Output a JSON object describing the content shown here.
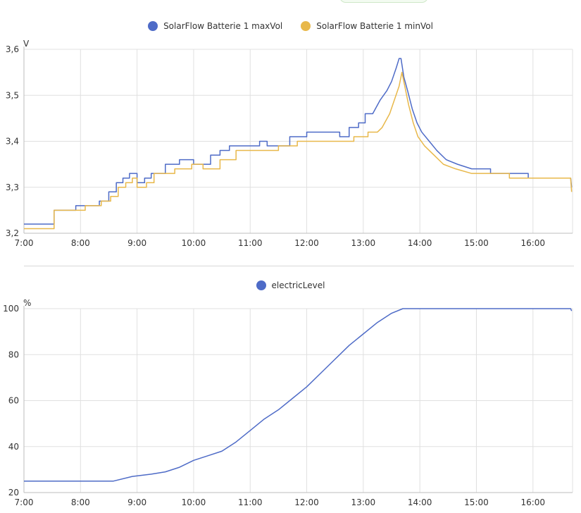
{
  "chart_data": [
    {
      "type": "line",
      "title": "",
      "unit_label": "V",
      "xlabel": "",
      "ylabel": "",
      "ylim": [
        3.2,
        3.6
      ],
      "xlim": [
        "7:00",
        "16:42"
      ],
      "y_ticks": [
        "3,2",
        "3,3",
        "3,4",
        "3,5",
        "3,6"
      ],
      "x_ticks": [
        "7:00",
        "8:00",
        "9:00",
        "10:00",
        "11:00",
        "12:00",
        "13:00",
        "14:00",
        "15:00",
        "16:00"
      ],
      "grid": true,
      "legend_position": "top-center",
      "series": [
        {
          "name": "SolarFlow Batterie 1 maxVol",
          "color": "#4e6bc7",
          "points": [
            [
              "7:00",
              3.22
            ],
            [
              "7:32",
              3.22
            ],
            [
              "7:32",
              3.25
            ],
            [
              "7:55",
              3.25
            ],
            [
              "7:55",
              3.26
            ],
            [
              "8:20",
              3.26
            ],
            [
              "8:20",
              3.27
            ],
            [
              "8:30",
              3.27
            ],
            [
              "8:30",
              3.29
            ],
            [
              "8:38",
              3.29
            ],
            [
              "8:38",
              3.31
            ],
            [
              "8:45",
              3.31
            ],
            [
              "8:45",
              3.32
            ],
            [
              "8:52",
              3.32
            ],
            [
              "8:52",
              3.33
            ],
            [
              "9:00",
              3.33
            ],
            [
              "9:00",
              3.31
            ],
            [
              "9:08",
              3.31
            ],
            [
              "9:08",
              3.32
            ],
            [
              "9:15",
              3.32
            ],
            [
              "9:15",
              3.33
            ],
            [
              "9:30",
              3.33
            ],
            [
              "9:30",
              3.35
            ],
            [
              "9:45",
              3.35
            ],
            [
              "9:45",
              3.36
            ],
            [
              "10:00",
              3.36
            ],
            [
              "10:00",
              3.35
            ],
            [
              "10:18",
              3.35
            ],
            [
              "10:18",
              3.37
            ],
            [
              "10:28",
              3.37
            ],
            [
              "10:28",
              3.38
            ],
            [
              "10:38",
              3.38
            ],
            [
              "10:38",
              3.39
            ],
            [
              "11:10",
              3.39
            ],
            [
              "11:10",
              3.4
            ],
            [
              "11:18",
              3.4
            ],
            [
              "11:18",
              3.39
            ],
            [
              "11:42",
              3.39
            ],
            [
              "11:42",
              3.41
            ],
            [
              "12:00",
              3.41
            ],
            [
              "12:00",
              3.42
            ],
            [
              "12:35",
              3.42
            ],
            [
              "12:35",
              3.41
            ],
            [
              "12:45",
              3.41
            ],
            [
              "12:45",
              3.43
            ],
            [
              "12:55",
              3.43
            ],
            [
              "12:55",
              3.44
            ],
            [
              "13:02",
              3.44
            ],
            [
              "13:02",
              3.46
            ],
            [
              "13:10",
              3.46
            ],
            [
              "13:18",
              3.49
            ],
            [
              "13:25",
              3.51
            ],
            [
              "13:30",
              3.53
            ],
            [
              "13:35",
              3.56
            ],
            [
              "13:38",
              3.58
            ],
            [
              "13:40",
              3.58
            ],
            [
              "13:43",
              3.54
            ],
            [
              "13:47",
              3.51
            ],
            [
              "13:52",
              3.47
            ],
            [
              "13:57",
              3.44
            ],
            [
              "14:02",
              3.42
            ],
            [
              "14:10",
              3.4
            ],
            [
              "14:18",
              3.38
            ],
            [
              "14:28",
              3.36
            ],
            [
              "14:40",
              3.35
            ],
            [
              "14:55",
              3.34
            ],
            [
              "15:15",
              3.34
            ],
            [
              "15:15",
              3.33
            ],
            [
              "15:55",
              3.33
            ],
            [
              "15:55",
              3.32
            ],
            [
              "16:40",
              3.32
            ],
            [
              "16:41",
              3.3
            ]
          ]
        },
        {
          "name": "SolarFlow Batterie 1 minVol",
          "color": "#e8b84a",
          "points": [
            [
              "7:00",
              3.21
            ],
            [
              "7:32",
              3.21
            ],
            [
              "7:32",
              3.25
            ],
            [
              "8:05",
              3.25
            ],
            [
              "8:05",
              3.26
            ],
            [
              "8:22",
              3.26
            ],
            [
              "8:22",
              3.27
            ],
            [
              "8:32",
              3.27
            ],
            [
              "8:32",
              3.28
            ],
            [
              "8:40",
              3.28
            ],
            [
              "8:40",
              3.3
            ],
            [
              "8:48",
              3.3
            ],
            [
              "8:48",
              3.31
            ],
            [
              "8:55",
              3.31
            ],
            [
              "8:55",
              3.32
            ],
            [
              "9:00",
              3.32
            ],
            [
              "9:00",
              3.3
            ],
            [
              "9:10",
              3.3
            ],
            [
              "9:10",
              3.31
            ],
            [
              "9:18",
              3.31
            ],
            [
              "9:18",
              3.33
            ],
            [
              "9:40",
              3.33
            ],
            [
              "9:40",
              3.34
            ],
            [
              "9:58",
              3.34
            ],
            [
              "9:58",
              3.35
            ],
            [
              "10:10",
              3.35
            ],
            [
              "10:10",
              3.34
            ],
            [
              "10:28",
              3.34
            ],
            [
              "10:28",
              3.36
            ],
            [
              "10:45",
              3.36
            ],
            [
              "10:45",
              3.38
            ],
            [
              "11:30",
              3.38
            ],
            [
              "11:30",
              3.39
            ],
            [
              "11:50",
              3.39
            ],
            [
              "11:50",
              3.4
            ],
            [
              "12:50",
              3.4
            ],
            [
              "12:50",
              3.41
            ],
            [
              "13:05",
              3.41
            ],
            [
              "13:05",
              3.42
            ],
            [
              "13:15",
              3.42
            ],
            [
              "13:20",
              3.43
            ],
            [
              "13:28",
              3.46
            ],
            [
              "13:33",
              3.49
            ],
            [
              "13:38",
              3.52
            ],
            [
              "13:41",
              3.55
            ],
            [
              "13:44",
              3.52
            ],
            [
              "13:48",
              3.48
            ],
            [
              "13:53",
              3.44
            ],
            [
              "13:58",
              3.41
            ],
            [
              "14:05",
              3.39
            ],
            [
              "14:15",
              3.37
            ],
            [
              "14:25",
              3.35
            ],
            [
              "14:38",
              3.34
            ],
            [
              "14:55",
              3.33
            ],
            [
              "15:35",
              3.33
            ],
            [
              "15:35",
              3.32
            ],
            [
              "16:40",
              3.32
            ],
            [
              "16:41",
              3.29
            ]
          ]
        }
      ]
    },
    {
      "type": "line",
      "title": "",
      "unit_label": "%",
      "xlabel": "",
      "ylabel": "",
      "ylim": [
        20,
        100
      ],
      "xlim": [
        "7:00",
        "16:42"
      ],
      "y_ticks": [
        "20",
        "40",
        "60",
        "80",
        "100"
      ],
      "x_ticks": [
        "7:00",
        "8:00",
        "9:00",
        "10:00",
        "11:00",
        "12:00",
        "13:00",
        "14:00",
        "15:00",
        "16:00"
      ],
      "grid": true,
      "legend_position": "top-center",
      "series": [
        {
          "name": "electricLevel",
          "color": "#4e6bc7",
          "points": [
            [
              "7:00",
              25
            ],
            [
              "8:35",
              25
            ],
            [
              "8:55",
              27
            ],
            [
              "9:15",
              28
            ],
            [
              "9:30",
              29
            ],
            [
              "9:45",
              31
            ],
            [
              "10:00",
              34
            ],
            [
              "10:15",
              36
            ],
            [
              "10:30",
              38
            ],
            [
              "10:45",
              42
            ],
            [
              "11:00",
              47
            ],
            [
              "11:15",
              52
            ],
            [
              "11:30",
              56
            ],
            [
              "11:45",
              61
            ],
            [
              "12:00",
              66
            ],
            [
              "12:15",
              72
            ],
            [
              "12:30",
              78
            ],
            [
              "12:45",
              84
            ],
            [
              "13:00",
              89
            ],
            [
              "13:15",
              94
            ],
            [
              "13:30",
              98
            ],
            [
              "13:42",
              100
            ],
            [
              "16:40",
              100
            ],
            [
              "16:41",
              99
            ]
          ]
        }
      ]
    }
  ]
}
